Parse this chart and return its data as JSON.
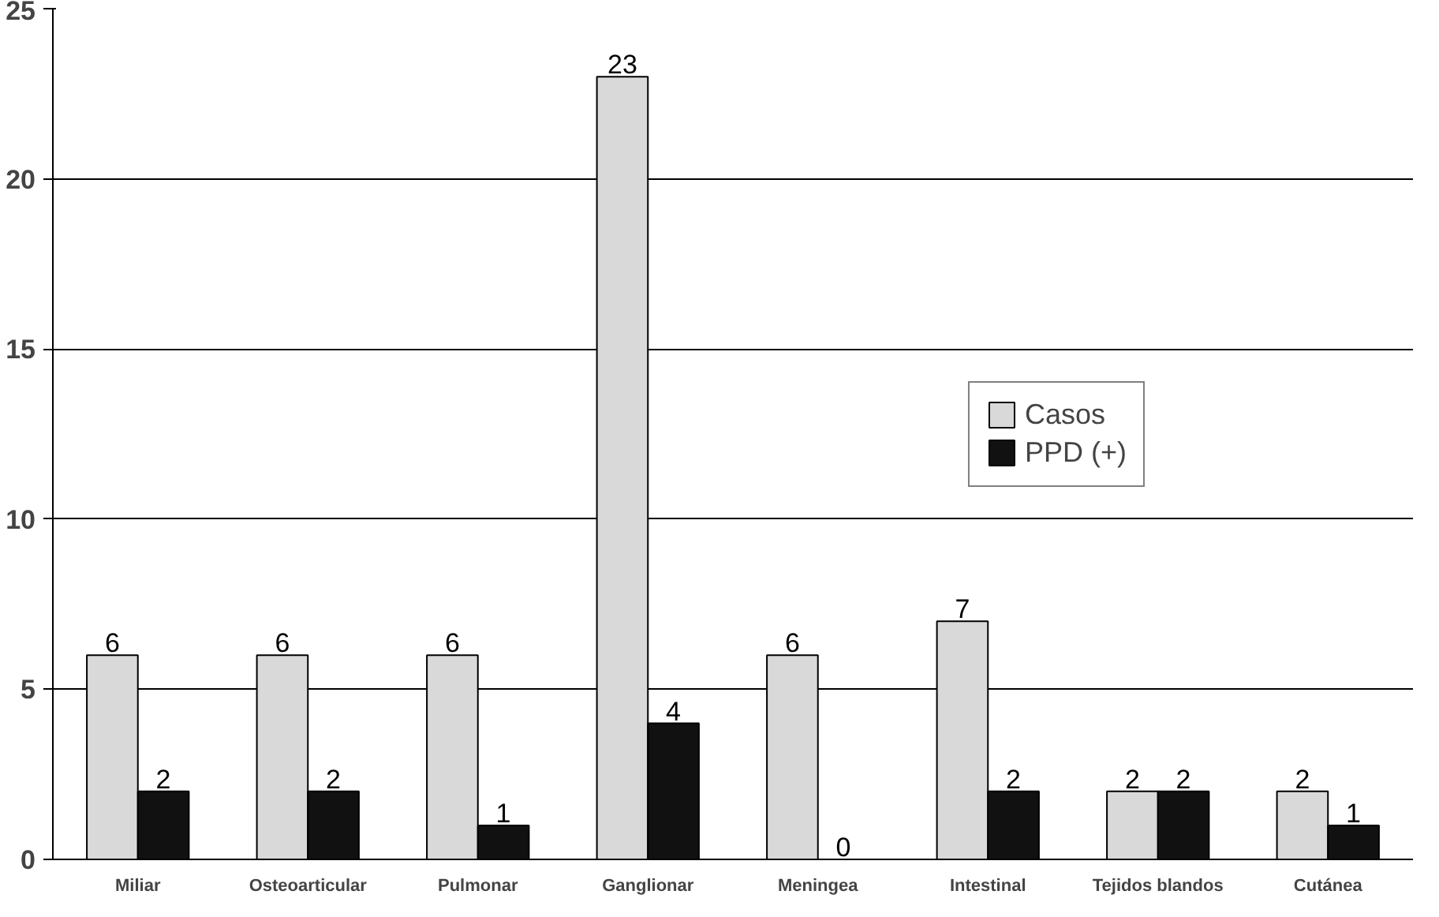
{
  "chart_data": {
    "type": "bar",
    "categories": [
      "Miliar",
      "Osteoarticular",
      "Pulmonar",
      "Ganglionar",
      "Meningea",
      "Intestinal",
      "Tejidos blandos",
      "Cutánea"
    ],
    "series": [
      {
        "name": "Casos",
        "color": "#d9d9d9",
        "values": [
          6,
          6,
          6,
          23,
          6,
          7,
          2,
          2
        ]
      },
      {
        "name": "PPD (+)",
        "color": "#111111",
        "values": [
          2,
          2,
          1,
          4,
          0,
          2,
          2,
          1
        ]
      }
    ],
    "ylim": [
      0,
      25
    ],
    "yticks": [
      0,
      5,
      10,
      15,
      20,
      25
    ],
    "grid": "y",
    "legend": "right",
    "data_labels": true
  }
}
